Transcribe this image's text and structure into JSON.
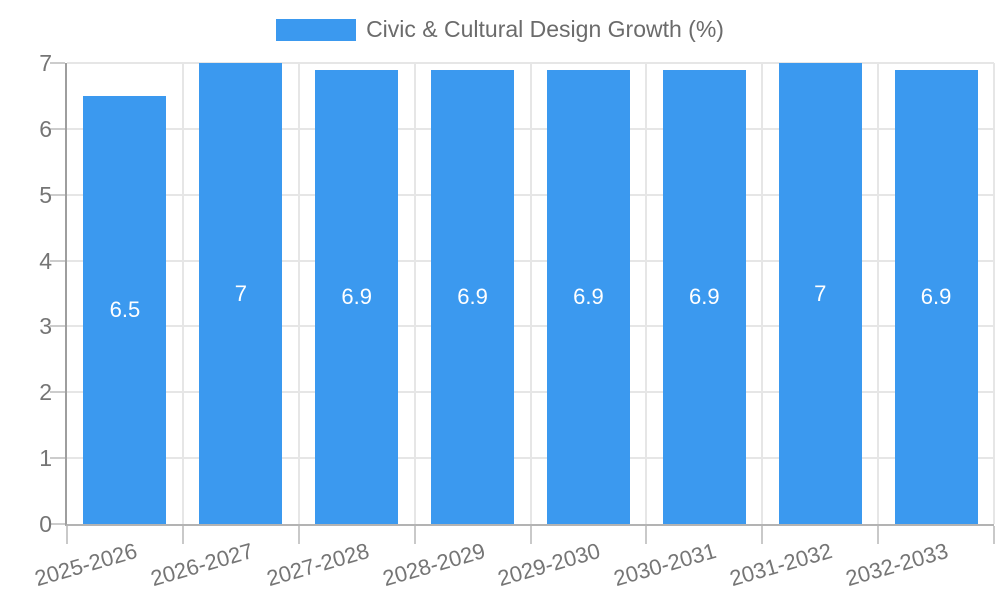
{
  "chart_data": {
    "type": "bar",
    "title": "Civic & Cultural Design Growth (%)",
    "categories": [
      "2025-2026",
      "2026-2027",
      "2027-2028",
      "2028-2029",
      "2029-2030",
      "2030-2031",
      "2031-2032",
      "2032-2033"
    ],
    "values": [
      6.5,
      7,
      6.9,
      6.9,
      6.9,
      6.9,
      7,
      6.9
    ],
    "value_labels": [
      "6.5",
      "7",
      "6.9",
      "6.9",
      "6.9",
      "6.9",
      "7",
      "6.9"
    ],
    "xlabel": "",
    "ylabel": "",
    "ylim": [
      0,
      7
    ],
    "yticks": [
      0,
      1,
      2,
      3,
      4,
      5,
      6,
      7
    ],
    "grid": true,
    "legend_position": "top",
    "colors": {
      "bar": "#3B99EF",
      "bar_label": "#FFFFFF",
      "axis_text": "#757575",
      "gridline": "#E6E6E6",
      "axis_line": "#9E9E9E",
      "baseline": "#B3B3B3",
      "legend_text": "#6B6B6B",
      "background": "#FFFFFF"
    }
  }
}
